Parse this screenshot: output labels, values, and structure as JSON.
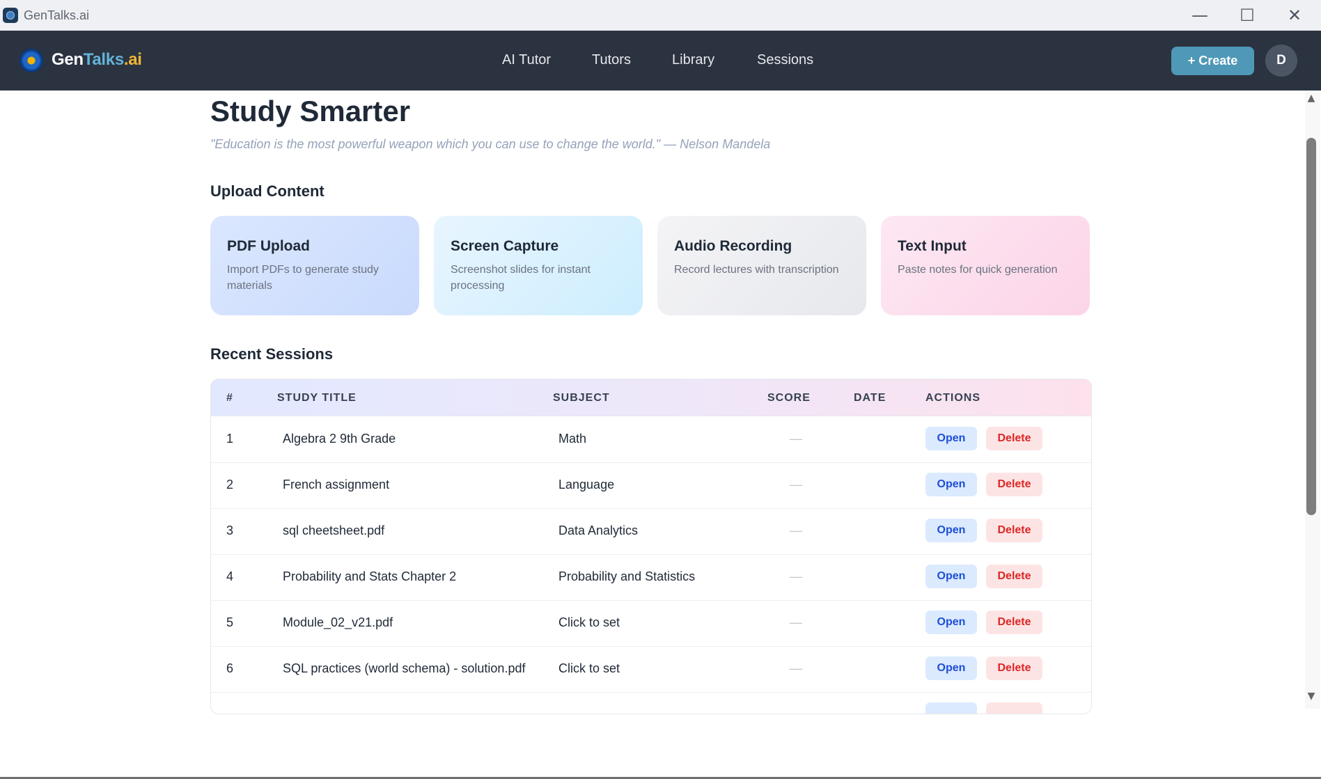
{
  "window": {
    "title": "GenTalks.ai",
    "controls": {
      "minimize": "—",
      "maximize": "☐",
      "close": "✕"
    }
  },
  "brand": {
    "logo_part1": "Gen",
    "logo_part2": "Talks",
    "logo_part3": ".ai"
  },
  "nav": {
    "links": [
      "AI Tutor",
      "Tutors",
      "Library",
      "Sessions"
    ],
    "create_label": "+ Create",
    "avatar_initial": "D"
  },
  "hero": {
    "title": "Study Smarter",
    "quote": "\"Education is the most powerful weapon which you can use to change the world.\" — Nelson Mandela"
  },
  "upload": {
    "title": "Upload Content",
    "cards": [
      {
        "title": "PDF Upload",
        "description": "Import PDFs to generate study materials"
      },
      {
        "title": "Screen Capture",
        "description": "Screenshot slides for instant processing"
      },
      {
        "title": "Audio Recording",
        "description": "Record lectures with transcription"
      },
      {
        "title": "Text Input",
        "description": "Paste notes for quick generation"
      }
    ]
  },
  "sessions": {
    "title": "Recent Sessions",
    "columns": [
      "#",
      "STUDY TITLE",
      "SUBJECT",
      "SCORE",
      "DATE",
      "ACTIONS"
    ],
    "open_label": "Open",
    "delete_label": "Delete",
    "rows": [
      {
        "num": "1",
        "title": "Algebra 2 9th Grade",
        "subject": "Math",
        "score": "—",
        "date": ""
      },
      {
        "num": "2",
        "title": "French assignment",
        "subject": "Language",
        "score": "—",
        "date": ""
      },
      {
        "num": "3",
        "title": "sql cheetsheet.pdf",
        "subject": "Data Analytics",
        "score": "—",
        "date": ""
      },
      {
        "num": "4",
        "title": "Probability and Stats Chapter 2",
        "subject": "Probability and Statistics",
        "score": "—",
        "date": ""
      },
      {
        "num": "5",
        "title": "Module_02_v21.pdf",
        "subject": "Click to set",
        "score": "—",
        "date": ""
      },
      {
        "num": "6",
        "title": "SQL practices (world schema) - solution.pdf",
        "subject": "Click to set",
        "score": "—",
        "date": ""
      }
    ]
  },
  "colors": {
    "navbar": "#2b3340",
    "accent": "#4f98b8",
    "open_button": "#dbeafe",
    "delete_button": "#fde4e4"
  }
}
